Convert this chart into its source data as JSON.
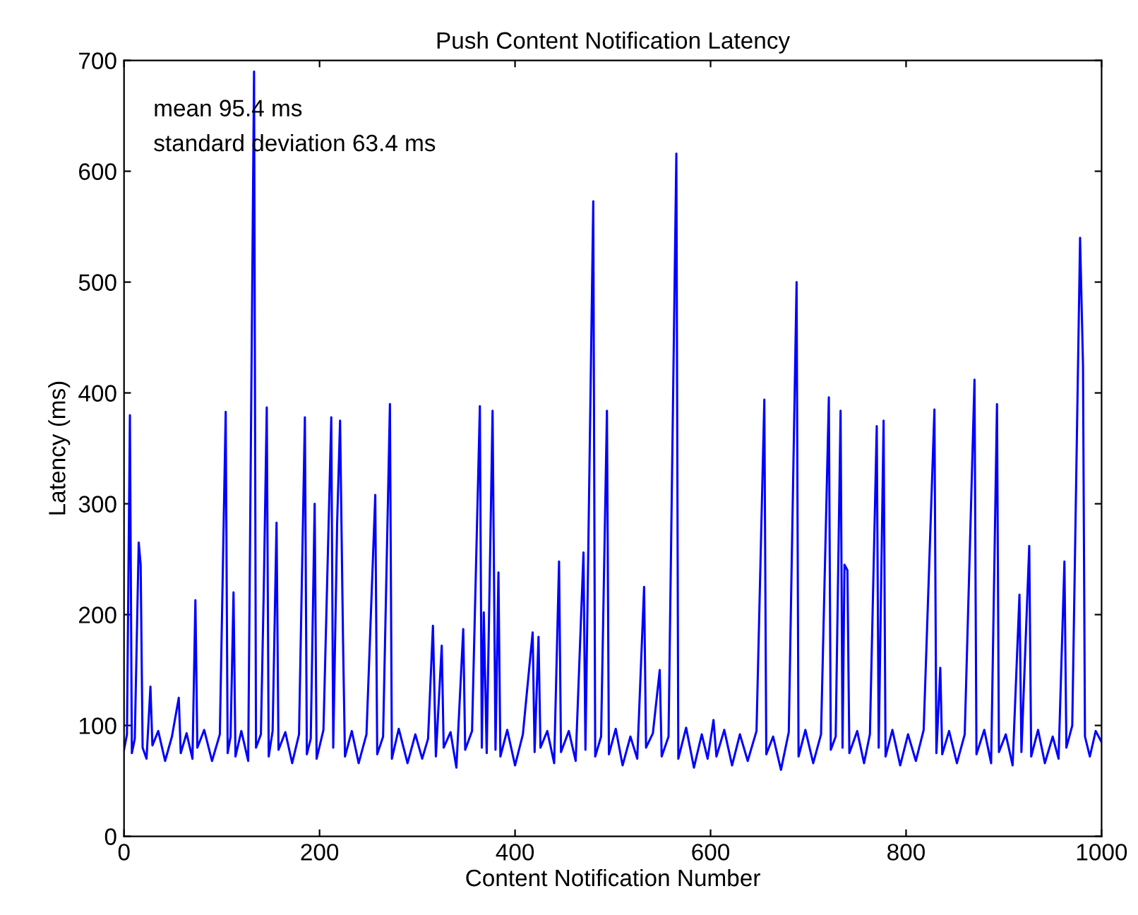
{
  "chart_data": {
    "type": "line",
    "title": "Push Content Notification Latency",
    "xlabel": "Content Notification Number",
    "ylabel": "Latency (ms)",
    "annotations": [
      "mean 95.4 ms",
      "standard deviation 63.4 ms"
    ],
    "xlim": [
      0,
      1000
    ],
    "ylim": [
      0,
      700
    ],
    "xticks": [
      0,
      200,
      400,
      600,
      800,
      1000
    ],
    "yticks": [
      0,
      100,
      200,
      300,
      400,
      500,
      600,
      700
    ],
    "grid": false,
    "legend": false,
    "marker": "none",
    "line_style": "solid",
    "series": [
      {
        "color": "#0000ff",
        "x": [
          0,
          3,
          6,
          8,
          11,
          15,
          17,
          19,
          23,
          27,
          29,
          35,
          42,
          49,
          56,
          58,
          64,
          70,
          73,
          75,
          82,
          90,
          98,
          104,
          106,
          109,
          112,
          114,
          120,
          127,
          133,
          135,
          140,
          143,
          146,
          148,
          152,
          156,
          158,
          165,
          172,
          179,
          185,
          187,
          191,
          195,
          197,
          204,
          212,
          214,
          218,
          221,
          224,
          226,
          233,
          240,
          248,
          257,
          259,
          265,
          272,
          274,
          281,
          290,
          298,
          305,
          311,
          316,
          319,
          325,
          327,
          334,
          340,
          347,
          349,
          356,
          364,
          366,
          368,
          371,
          377,
          380,
          383,
          385,
          392,
          400,
          408,
          418,
          420,
          424,
          426,
          433,
          440,
          445,
          447,
          455,
          462,
          470,
          472,
          480,
          482,
          488,
          494,
          496,
          503,
          510,
          518,
          525,
          532,
          534,
          541,
          548,
          550,
          557,
          565,
          567,
          575,
          583,
          591,
          597,
          603,
          606,
          614,
          622,
          630,
          638,
          647,
          655,
          657,
          664,
          672,
          680,
          688,
          690,
          697,
          705,
          713,
          721,
          723,
          728,
          733,
          735,
          737,
          740,
          742,
          750,
          757,
          763,
          770,
          772,
          777,
          779,
          786,
          794,
          802,
          810,
          818,
          829,
          831,
          835,
          837,
          844,
          852,
          860,
          870,
          872,
          880,
          887,
          893,
          895,
          902,
          909,
          916,
          918,
          926,
          928,
          935,
          942,
          950,
          956,
          962,
          964,
          970,
          978,
          981,
          983,
          988,
          994,
          1000
        ],
        "values": [
          78,
          92,
          380,
          75,
          88,
          265,
          245,
          80,
          70,
          135,
          82,
          95,
          68,
          90,
          125,
          75,
          93,
          70,
          213,
          80,
          96,
          68,
          92,
          383,
          75,
          90,
          220,
          72,
          95,
          68,
          690,
          80,
          92,
          225,
          387,
          72,
          95,
          283,
          78,
          94,
          66,
          92,
          378,
          74,
          88,
          300,
          70,
          96,
          378,
          80,
          283,
          375,
          178,
          72,
          95,
          66,
          92,
          308,
          74,
          90,
          390,
          70,
          97,
          66,
          92,
          70,
          88,
          190,
          72,
          172,
          80,
          94,
          62,
          187,
          78,
          95,
          388,
          80,
          202,
          75,
          384,
          78,
          238,
          72,
          96,
          64,
          92,
          184,
          76,
          180,
          80,
          95,
          66,
          248,
          76,
          95,
          68,
          256,
          78,
          573,
          72,
          90,
          384,
          74,
          97,
          64,
          90,
          70,
          225,
          80,
          93,
          150,
          72,
          90,
          616,
          70,
          98,
          62,
          92,
          70,
          105,
          72,
          96,
          64,
          92,
          68,
          95,
          394,
          74,
          90,
          60,
          94,
          500,
          72,
          96,
          66,
          92,
          396,
          78,
          90,
          384,
          80,
          245,
          240,
          75,
          95,
          66,
          92,
          370,
          80,
          375,
          72,
          96,
          64,
          92,
          68,
          96,
          385,
          75,
          152,
          74,
          95,
          66,
          92,
          412,
          74,
          96,
          66,
          390,
          76,
          92,
          64,
          218,
          76,
          262,
          72,
          96,
          66,
          90,
          70,
          248,
          80,
          100,
          540,
          425,
          90,
          72,
          95,
          85
        ]
      }
    ]
  }
}
